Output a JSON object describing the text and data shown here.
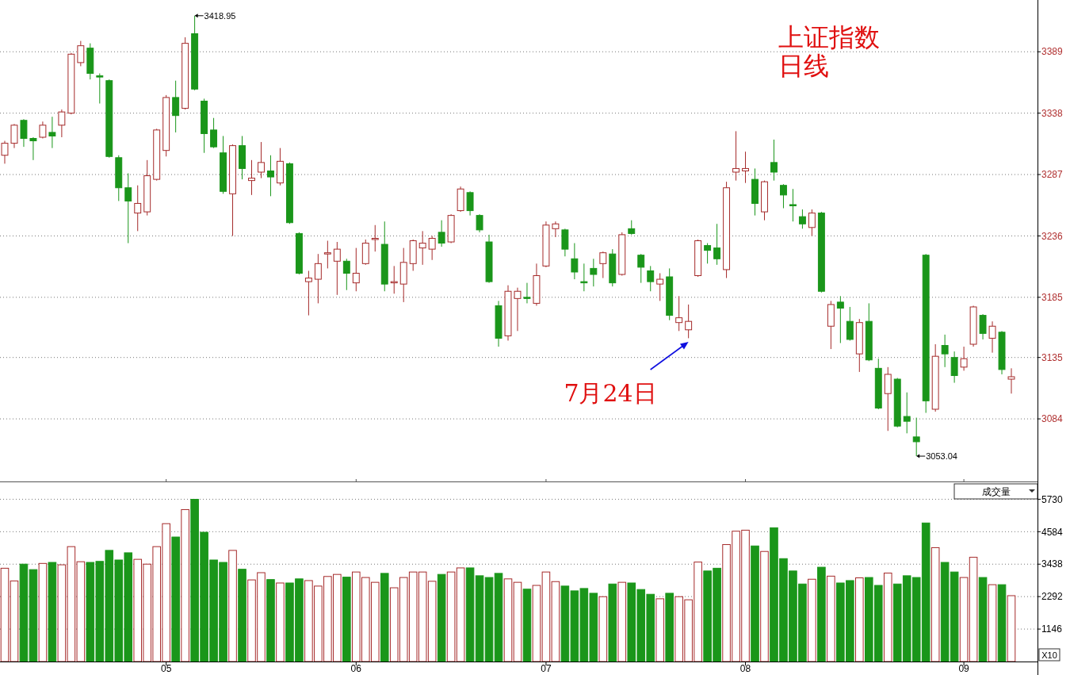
{
  "chart_data": [
    {
      "type": "candlestick",
      "title": "上证指数",
      "subtitle": "日线",
      "categories": [
        null,
        null,
        null,
        null,
        null,
        null,
        null,
        null,
        null,
        null,
        null,
        null,
        null,
        null,
        null,
        null,
        null,
        "05",
        null,
        null,
        null,
        null,
        null,
        null,
        null,
        null,
        null,
        null,
        null,
        null,
        null,
        null,
        null,
        null,
        null,
        null,
        null,
        "06",
        null,
        null,
        null,
        null,
        null,
        null,
        null,
        null,
        null,
        null,
        null,
        null,
        null,
        null,
        null,
        null,
        null,
        null,
        null,
        "07",
        null,
        null,
        null,
        null,
        null,
        null,
        null,
        null,
        null,
        null,
        null,
        null,
        null,
        null,
        null,
        null,
        null,
        null,
        null,
        null,
        "08",
        null,
        null,
        null,
        null,
        null,
        null,
        null,
        null,
        null,
        null,
        null,
        null,
        null,
        null,
        null,
        null,
        null,
        null,
        null,
        null,
        null,
        null,
        "09",
        null,
        null,
        null,
        null,
        null
      ],
      "ohlc": [
        [
          3303,
          3315,
          3296,
          3313
        ],
        [
          3313,
          3329,
          3309,
          3328
        ],
        [
          3332,
          3333,
          3310,
          3317
        ],
        [
          3317,
          3318,
          3299,
          3315
        ],
        [
          3318,
          3331,
          3317,
          3328
        ],
        [
          3322,
          3335,
          3309,
          3319
        ],
        [
          3328,
          3341,
          3318,
          3339
        ],
        [
          3338,
          3388,
          3337,
          3387
        ],
        [
          3380,
          3398,
          3377,
          3394
        ],
        [
          3392,
          3396,
          3366,
          3371
        ],
        [
          3369,
          3371,
          3346,
          3368
        ],
        [
          3365,
          3366,
          3301,
          3302
        ],
        [
          3301,
          3303,
          3265,
          3276
        ],
        [
          3276,
          3288,
          3230,
          3265
        ],
        [
          3255,
          3278,
          3240,
          3263
        ],
        [
          3256,
          3299,
          3253,
          3286
        ],
        [
          3283,
          3325,
          3282,
          3324
        ],
        [
          3307,
          3353,
          3302,
          3351
        ],
        [
          3351,
          3365,
          3322,
          3336
        ],
        [
          3342,
          3401,
          3341,
          3396
        ],
        [
          3404,
          3418.95,
          3357,
          3358
        ],
        [
          3348,
          3350,
          3305,
          3321
        ],
        [
          3324,
          3334,
          3309,
          3310
        ],
        [
          3305,
          3319,
          3271,
          3273
        ],
        [
          3271,
          3312,
          3236,
          3311
        ],
        [
          3311,
          3319,
          3283,
          3292
        ],
        [
          3282,
          3299,
          3270,
          3284
        ],
        [
          3289,
          3314,
          3284,
          3297
        ],
        [
          3290,
          3303,
          3269,
          3285
        ],
        [
          3280,
          3309,
          3278,
          3298
        ],
        [
          3296,
          3297,
          3246,
          3247
        ],
        [
          3238,
          3239,
          3204,
          3205
        ],
        [
          3198,
          3207,
          3170,
          3201
        ],
        [
          3200,
          3221,
          3180,
          3213
        ],
        [
          3221,
          3232,
          3209,
          3222
        ],
        [
          3215,
          3231,
          3187,
          3225
        ],
        [
          3215,
          3217,
          3191,
          3205
        ],
        [
          3197,
          3226,
          3190,
          3205
        ],
        [
          3213,
          3233,
          3212,
          3230
        ],
        [
          3233,
          3245,
          3223,
          3234
        ],
        [
          3229,
          3248,
          3190,
          3196
        ],
        [
          3197,
          3211,
          3188,
          3198
        ],
        [
          3196,
          3226,
          3181,
          3214
        ],
        [
          3213,
          3233,
          3207,
          3232
        ],
        [
          3226,
          3240,
          3212,
          3230
        ],
        [
          3225,
          3236,
          3216,
          3234
        ],
        [
          3239,
          3249,
          3227,
          3230
        ],
        [
          3231,
          3254,
          3230,
          3253
        ],
        [
          3257,
          3277,
          3256,
          3275
        ],
        [
          3272,
          3273,
          3253,
          3257
        ],
        [
          3253,
          3254,
          3239,
          3241
        ],
        [
          3231,
          3237,
          3197,
          3198
        ],
        [
          3178,
          3182,
          3144,
          3151
        ],
        [
          3153,
          3195,
          3149,
          3190
        ],
        [
          3184,
          3193,
          3157,
          3190
        ],
        [
          3185,
          3197,
          3180,
          3184
        ],
        [
          3180,
          3213,
          3178,
          3203
        ],
        [
          3211,
          3248,
          3210,
          3245
        ],
        [
          3242,
          3248,
          3235,
          3246
        ],
        [
          3241,
          3242,
          3219,
          3225
        ],
        [
          3217,
          3230,
          3200,
          3206
        ],
        [
          3198,
          3213,
          3190,
          3197
        ],
        [
          3209,
          3217,
          3194,
          3204
        ],
        [
          3213,
          3223,
          3201,
          3222
        ],
        [
          3221,
          3225,
          3194,
          3197
        ],
        [
          3204,
          3239,
          3203,
          3237
        ],
        [
          3242,
          3249,
          3237,
          3238
        ],
        [
          3220,
          3221,
          3197,
          3210
        ],
        [
          3207,
          3211,
          3190,
          3198
        ],
        [
          3196,
          3205,
          3182,
          3200
        ],
        [
          3202,
          3209,
          3166,
          3170
        ],
        [
          3164,
          3186,
          3157,
          3168
        ],
        [
          3158,
          3179,
          3151,
          3165
        ],
        [
          3203,
          3233,
          3202,
          3232
        ],
        [
          3228,
          3230,
          3213,
          3224
        ],
        [
          3226,
          3246,
          3212,
          3217
        ],
        [
          3208,
          3281,
          3201,
          3276
        ],
        [
          3289,
          3323,
          3282,
          3292
        ],
        [
          3290,
          3306,
          3280,
          3292
        ],
        [
          3283,
          3292,
          3253,
          3263
        ],
        [
          3256,
          3282,
          3249,
          3281
        ],
        [
          3297,
          3316,
          3282,
          3289
        ],
        [
          3278,
          3279,
          3259,
          3270
        ],
        [
          3262,
          3275,
          3248,
          3261
        ],
        [
          3252,
          3258,
          3242,
          3246
        ],
        [
          3243,
          3258,
          3236,
          3255
        ],
        [
          3255,
          3256,
          3189,
          3190
        ],
        [
          3161,
          3182,
          3142,
          3179
        ],
        [
          3181,
          3186,
          3147,
          3176
        ],
        [
          3165,
          3177,
          3149,
          3150
        ],
        [
          3138,
          3167,
          3123,
          3164
        ],
        [
          3165,
          3180,
          3132,
          3133
        ],
        [
          3126,
          3134,
          3092,
          3093
        ],
        [
          3105,
          3127,
          3074,
          3121
        ],
        [
          3117,
          3118,
          3077,
          3078
        ],
        [
          3086,
          3106,
          3072,
          3082
        ],
        [
          3069,
          3085,
          3053.04,
          3065
        ],
        [
          3220,
          3221,
          3089,
          3099
        ],
        [
          3092,
          3146,
          3090,
          3136
        ],
        [
          3145,
          3154,
          3127,
          3138
        ],
        [
          3135,
          3140,
          3114,
          3120
        ],
        [
          3127,
          3144,
          3124,
          3134
        ],
        [
          3146,
          3178,
          3144,
          3177
        ],
        [
          3170,
          3171,
          3150,
          3155
        ],
        [
          3151,
          3165,
          3139,
          3161
        ],
        [
          3156,
          3157,
          3121,
          3125
        ],
        [
          3117,
          3126,
          3105,
          3119
        ]
      ],
      "colors": [
        "#a52a2a",
        "#a52a2a",
        "#1a961a",
        "#1a961a",
        "#a52a2a",
        "#1a961a",
        "#a52a2a",
        "#a52a2a",
        "#a52a2a",
        "#1a961a",
        "#1a961a",
        "#1a961a",
        "#1a961a",
        "#1a961a",
        "#a52a2a",
        "#a52a2a",
        "#a52a2a",
        "#a52a2a",
        "#1a961a",
        "#a52a2a",
        "#1a961a",
        "#1a961a",
        "#1a961a",
        "#1a961a",
        "#a52a2a",
        "#1a961a",
        "#a52a2a",
        "#a52a2a",
        "#1a961a",
        "#a52a2a",
        "#1a961a",
        "#1a961a",
        "#a52a2a",
        "#a52a2a",
        "#a52a2a",
        "#a52a2a",
        "#1a961a",
        "#a52a2a",
        "#a52a2a",
        "#a52a2a",
        "#1a961a",
        "#a52a2a",
        "#a52a2a",
        "#a52a2a",
        "#a52a2a",
        "#a52a2a",
        "#1a961a",
        "#a52a2a",
        "#a52a2a",
        "#1a961a",
        "#1a961a",
        "#1a961a",
        "#1a961a",
        "#a52a2a",
        "#a52a2a",
        "#1a961a",
        "#a52a2a",
        "#a52a2a",
        "#a52a2a",
        "#1a961a",
        "#1a961a",
        "#1a961a",
        "#1a961a",
        "#a52a2a",
        "#1a961a",
        "#a52a2a",
        "#1a961a",
        "#1a961a",
        "#1a961a",
        "#a52a2a",
        "#1a961a",
        "#a52a2a",
        "#a52a2a",
        "#a52a2a",
        "#1a961a",
        "#1a961a",
        "#a52a2a",
        "#a52a2a",
        "#a52a2a",
        "#1a961a",
        "#a52a2a",
        "#1a961a",
        "#1a961a",
        "#1a961a",
        "#1a961a",
        "#a52a2a",
        "#1a961a",
        "#a52a2a",
        "#1a961a",
        "#1a961a",
        "#a52a2a",
        "#1a961a",
        "#1a961a",
        "#a52a2a",
        "#1a961a",
        "#1a961a",
        "#1a961a",
        "#1a961a",
        "#a52a2a",
        "#1a961a",
        "#1a961a",
        "#a52a2a",
        "#a52a2a",
        "#1a961a",
        "#a52a2a",
        "#1a961a",
        "#a52a2a"
      ],
      "ylim": [
        3032,
        3432
      ],
      "yticks": [
        3084,
        3135,
        3185,
        3236,
        3287,
        3338,
        3389
      ],
      "grid": "y",
      "tick_labels": "y",
      "annotations": [
        "3418.95",
        "3053.04",
        "7月24日"
      ]
    },
    {
      "type": "bar",
      "ylabel": "成交量",
      "categories": [
        null,
        null,
        null,
        null,
        null,
        null,
        null,
        null,
        null,
        null,
        null,
        null,
        null,
        null,
        null,
        null,
        null,
        "05",
        null,
        null,
        null,
        null,
        null,
        null,
        null,
        null,
        null,
        null,
        null,
        null,
        null,
        null,
        null,
        null,
        null,
        null,
        null,
        "06",
        null,
        null,
        null,
        null,
        null,
        null,
        null,
        null,
        null,
        null,
        null,
        null,
        null,
        null,
        null,
        null,
        null,
        null,
        null,
        "07",
        null,
        null,
        null,
        null,
        null,
        null,
        null,
        null,
        null,
        null,
        null,
        null,
        null,
        null,
        null,
        null,
        null,
        null,
        null,
        null,
        "08",
        null,
        null,
        null,
        null,
        null,
        null,
        null,
        null,
        null,
        null,
        null,
        null,
        null,
        null,
        null,
        null,
        null,
        null,
        null,
        null,
        null,
        null,
        "09",
        null,
        null,
        null,
        null,
        null
      ],
      "values": [
        3294,
        2846,
        3439,
        3245,
        3464,
        3500,
        3415,
        4057,
        3524,
        3500,
        3536,
        3924,
        3585,
        3839,
        3609,
        3439,
        4057,
        4868,
        4396,
        5365,
        5728,
        4565,
        3585,
        3500,
        3924,
        3258,
        2882,
        3137,
        2894,
        2773,
        2773,
        2918,
        2858,
        2664,
        3003,
        3076,
        2979,
        3161,
        2967,
        2797,
        3112,
        2604,
        2967,
        3161,
        3161,
        2834,
        3076,
        3161,
        3306,
        3306,
        3028,
        2967,
        3112,
        2918,
        2797,
        2555,
        2688,
        3161,
        2822,
        2664,
        2495,
        2579,
        2410,
        2289,
        2737,
        2797,
        2773,
        2543,
        2374,
        2216,
        2410,
        2289,
        2180,
        3512,
        3197,
        3294,
        4130,
        4602,
        4638,
        4081,
        3887,
        4723,
        3633,
        3197,
        2737,
        2906,
        3330,
        3015,
        2773,
        2858,
        2955,
        2967,
        2688,
        3124,
        2737,
        3028,
        2967,
        4892,
        4021,
        3500,
        3161,
        2967,
        3681,
        2967,
        2713,
        2713,
        2325
      ],
      "colors": [
        "#a52a2a",
        "#a52a2a",
        "#1a961a",
        "#1a961a",
        "#a52a2a",
        "#1a961a",
        "#a52a2a",
        "#a52a2a",
        "#a52a2a",
        "#1a961a",
        "#1a961a",
        "#1a961a",
        "#1a961a",
        "#1a961a",
        "#a52a2a",
        "#a52a2a",
        "#a52a2a",
        "#a52a2a",
        "#1a961a",
        "#a52a2a",
        "#1a961a",
        "#1a961a",
        "#1a961a",
        "#1a961a",
        "#a52a2a",
        "#1a961a",
        "#a52a2a",
        "#a52a2a",
        "#1a961a",
        "#a52a2a",
        "#1a961a",
        "#1a961a",
        "#a52a2a",
        "#a52a2a",
        "#a52a2a",
        "#a52a2a",
        "#1a961a",
        "#a52a2a",
        "#a52a2a",
        "#a52a2a",
        "#1a961a",
        "#a52a2a",
        "#a52a2a",
        "#a52a2a",
        "#a52a2a",
        "#a52a2a",
        "#1a961a",
        "#a52a2a",
        "#a52a2a",
        "#1a961a",
        "#1a961a",
        "#1a961a",
        "#1a961a",
        "#a52a2a",
        "#a52a2a",
        "#1a961a",
        "#a52a2a",
        "#a52a2a",
        "#a52a2a",
        "#1a961a",
        "#1a961a",
        "#1a961a",
        "#1a961a",
        "#a52a2a",
        "#1a961a",
        "#a52a2a",
        "#1a961a",
        "#1a961a",
        "#1a961a",
        "#a52a2a",
        "#1a961a",
        "#a52a2a",
        "#a52a2a",
        "#a52a2a",
        "#1a961a",
        "#1a961a",
        "#a52a2a",
        "#a52a2a",
        "#a52a2a",
        "#1a961a",
        "#a52a2a",
        "#1a961a",
        "#1a961a",
        "#1a961a",
        "#1a961a",
        "#a52a2a",
        "#1a961a",
        "#a52a2a",
        "#1a961a",
        "#1a961a",
        "#a52a2a",
        "#1a961a",
        "#1a961a",
        "#a52a2a",
        "#1a961a",
        "#1a961a",
        "#1a961a",
        "#1a961a",
        "#a52a2a",
        "#1a961a",
        "#1a961a",
        "#a52a2a",
        "#a52a2a",
        "#1a961a",
        "#a52a2a",
        "#1a961a",
        "#a52a2a"
      ],
      "ylim": [
        0,
        6330
      ],
      "yticks": [
        1146,
        2292,
        3438,
        4584,
        5730
      ],
      "grid": "y",
      "annotations": [
        "X10"
      ]
    }
  ]
}
